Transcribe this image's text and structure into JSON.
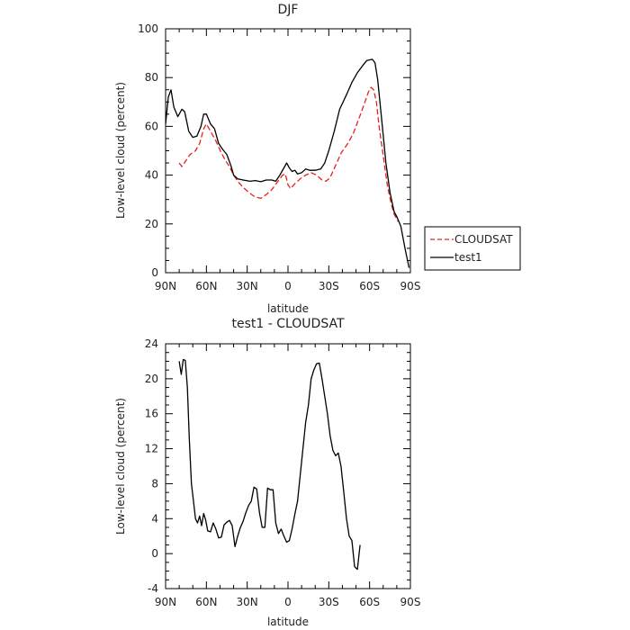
{
  "chart_data": [
    {
      "type": "line",
      "title": "DJF",
      "xlabel": "latitude",
      "ylabel": "Low-level cloud (percent)",
      "x_ticks": [
        "90N",
        "60N",
        "30N",
        "0",
        "30S",
        "60S",
        "90S"
      ],
      "x_tick_values": [
        90,
        60,
        30,
        0,
        -30,
        -60,
        -90
      ],
      "ylim": [
        0,
        100
      ],
      "y_ticks": [
        "0",
        "20",
        "40",
        "60",
        "80",
        "100"
      ],
      "y_tick_values": [
        0,
        20,
        40,
        60,
        80,
        100
      ],
      "legend_position": "right",
      "series": [
        {
          "name": "CLOUDSAT",
          "color": "#e8201a",
          "dashed": true,
          "points": [
            [
              80,
              45
            ],
            [
              78,
              43.5
            ],
            [
              75,
              46
            ],
            [
              72,
              48.5
            ],
            [
              68,
              50
            ],
            [
              65,
              53
            ],
            [
              62,
              59
            ],
            [
              60,
              61
            ],
            [
              57,
              58
            ],
            [
              53,
              54
            ],
            [
              49,
              49
            ],
            [
              46,
              46
            ],
            [
              43,
              43.5
            ],
            [
              40,
              40
            ],
            [
              37,
              37.5
            ],
            [
              33,
              35
            ],
            [
              29,
              33
            ],
            [
              24,
              31
            ],
            [
              20,
              30.5
            ],
            [
              16,
              32
            ],
            [
              12,
              34
            ],
            [
              8,
              37
            ],
            [
              4,
              40
            ],
            [
              2,
              40.5
            ],
            [
              0,
              36
            ],
            [
              -2,
              34.5
            ],
            [
              -5,
              36.5
            ],
            [
              -9,
              38.5
            ],
            [
              -13,
              40
            ],
            [
              -17,
              41
            ],
            [
              -21,
              40
            ],
            [
              -25,
              38
            ],
            [
              -28,
              37.5
            ],
            [
              -31,
              39
            ],
            [
              -35,
              44
            ],
            [
              -39,
              49
            ],
            [
              -44,
              53
            ],
            [
              -48,
              57
            ],
            [
              -52,
              63
            ],
            [
              -56,
              69
            ],
            [
              -59,
              74
            ],
            [
              -61,
              76
            ],
            [
              -63,
              75
            ],
            [
              -65,
              70
            ],
            [
              -67,
              60
            ],
            [
              -70,
              48
            ],
            [
              -73,
              36
            ],
            [
              -76,
              28
            ],
            [
              -78,
              24
            ],
            [
              -80,
              22
            ],
            [
              -81,
              21
            ]
          ]
        },
        {
          "name": "test1",
          "color": "#000000",
          "dashed": false,
          "points": [
            [
              90,
              61
            ],
            [
              88,
              72
            ],
            [
              86,
              75
            ],
            [
              84,
              68
            ],
            [
              81,
              64
            ],
            [
              78,
              67
            ],
            [
              76,
              66
            ],
            [
              73,
              58
            ],
            [
              70,
              55.5
            ],
            [
              67,
              56
            ],
            [
              64,
              60
            ],
            [
              62,
              65
            ],
            [
              60,
              65
            ],
            [
              57,
              61
            ],
            [
              54,
              59
            ],
            [
              51,
              53
            ],
            [
              48,
              50.5
            ],
            [
              45,
              48.5
            ],
            [
              42,
              44
            ],
            [
              40,
              40
            ],
            [
              37,
              38.5
            ],
            [
              33,
              38
            ],
            [
              28,
              37.5
            ],
            [
              24,
              37.8
            ],
            [
              20,
              37.3
            ],
            [
              16,
              38
            ],
            [
              12,
              38
            ],
            [
              9,
              37.5
            ],
            [
              6,
              40
            ],
            [
              3,
              43
            ],
            [
              1,
              45
            ],
            [
              -1,
              43
            ],
            [
              -3,
              41.5
            ],
            [
              -5,
              42
            ],
            [
              -7,
              40.5
            ],
            [
              -10,
              41
            ],
            [
              -13,
              42.5
            ],
            [
              -16,
              42
            ],
            [
              -20,
              42
            ],
            [
              -24,
              42.5
            ],
            [
              -27,
              45
            ],
            [
              -30,
              50
            ],
            [
              -34,
              58
            ],
            [
              -38,
              67
            ],
            [
              -43,
              73
            ],
            [
              -47,
              78
            ],
            [
              -51,
              82
            ],
            [
              -55,
              85
            ],
            [
              -58,
              87
            ],
            [
              -62,
              87.5
            ],
            [
              -64,
              86
            ],
            [
              -66,
              79
            ],
            [
              -69,
              62
            ],
            [
              -72,
              45
            ],
            [
              -75,
              33
            ],
            [
              -78,
              25
            ],
            [
              -80,
              23
            ],
            [
              -83,
              19
            ],
            [
              -86,
              10
            ],
            [
              -89,
              2
            ]
          ]
        }
      ]
    },
    {
      "type": "line",
      "title": "test1 - CLOUDSAT",
      "xlabel": "latitude",
      "ylabel": "Low-level cloud (percent)",
      "x_ticks": [
        "90N",
        "60N",
        "30N",
        "0",
        "30S",
        "60S",
        "90S"
      ],
      "x_tick_values": [
        90,
        60,
        30,
        0,
        -30,
        -60,
        -90
      ],
      "ylim": [
        -4,
        24
      ],
      "y_ticks": [
        "-4",
        "0",
        "4",
        "8",
        "12",
        "16",
        "20",
        "24"
      ],
      "y_tick_values": [
        -4,
        0,
        4,
        8,
        12,
        16,
        20,
        24
      ],
      "series": [
        {
          "color": "#000000",
          "dashed": false,
          "points": [
            [
              80,
              22
            ],
            [
              78.5,
              20.5
            ],
            [
              77,
              22.2
            ],
            [
              75.5,
              22.1
            ],
            [
              74,
              19
            ],
            [
              72.5,
              13
            ],
            [
              71,
              8
            ],
            [
              69.5,
              6
            ],
            [
              68,
              4
            ],
            [
              66.5,
              3.5
            ],
            [
              65,
              4.3
            ],
            [
              63.5,
              3.2
            ],
            [
              62,
              4.6
            ],
            [
              60.5,
              3.8
            ],
            [
              59,
              2.6
            ],
            [
              57,
              2.5
            ],
            [
              55,
              3.5
            ],
            [
              53,
              2.8
            ],
            [
              51,
              1.8
            ],
            [
              49,
              1.9
            ],
            [
              47,
              3.3
            ],
            [
              45,
              3.6
            ],
            [
              43,
              3.8
            ],
            [
              41,
              3.2
            ],
            [
              39,
              0.8
            ],
            [
              37,
              2
            ],
            [
              35,
              3
            ],
            [
              33,
              3.7
            ],
            [
              31,
              4.7
            ],
            [
              29,
              5.5
            ],
            [
              27,
              6
            ],
            [
              25,
              7.6
            ],
            [
              23,
              7.4
            ],
            [
              21,
              4.7
            ],
            [
              19,
              3
            ],
            [
              17,
              3
            ],
            [
              15,
              7.5
            ],
            [
              13,
              7.3
            ],
            [
              11,
              7.3
            ],
            [
              9,
              3.5
            ],
            [
              7,
              2.3
            ],
            [
              5,
              2.8
            ],
            [
              3,
              2
            ],
            [
              1,
              1.3
            ],
            [
              -1,
              1.5
            ],
            [
              -3,
              2.8
            ],
            [
              -5,
              4.5
            ],
            [
              -7,
              6
            ],
            [
              -9,
              9
            ],
            [
              -11,
              12
            ],
            [
              -13,
              15
            ],
            [
              -15,
              17
            ],
            [
              -17,
              20
            ],
            [
              -19,
              21
            ],
            [
              -21,
              21.7
            ],
            [
              -23,
              21.8
            ],
            [
              -25,
              20
            ],
            [
              -27,
              18
            ],
            [
              -29,
              16
            ],
            [
              -31,
              13.5
            ],
            [
              -33,
              11.8
            ],
            [
              -35,
              11.2
            ],
            [
              -37,
              11.5
            ],
            [
              -39,
              10
            ],
            [
              -41,
              7
            ],
            [
              -43,
              4
            ],
            [
              -45,
              2
            ],
            [
              -47,
              1.5
            ],
            [
              -49,
              -1.5
            ],
            [
              -51,
              -1.8
            ],
            [
              -53,
              1
            ]
          ]
        }
      ]
    }
  ]
}
